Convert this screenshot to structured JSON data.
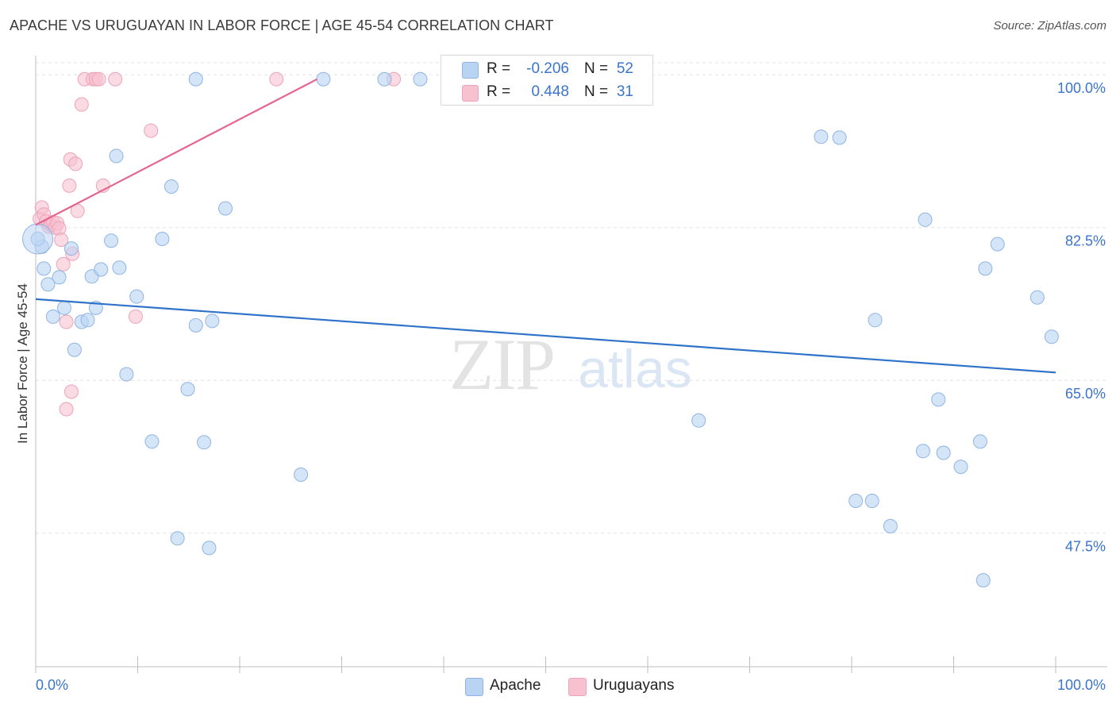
{
  "title": "APACHE VS URUGUAYAN IN LABOR FORCE | AGE 45-54 CORRELATION CHART",
  "source": "Source: ZipAtlas.com",
  "watermark": {
    "zip": "ZIP",
    "atlas": "atlas"
  },
  "colors": {
    "apache_fill": "#b9d3f3",
    "apache_stroke": "#8fb4e3",
    "apache_line": "#2f73c9",
    "uruguayan_fill": "#f7c1d0",
    "uruguayan_stroke": "#eda3b9",
    "uruguayan_line": "#e4658e",
    "tick_label": "#3b74c9",
    "grid": "#e2e2e2"
  },
  "legend": {
    "rows": [
      {
        "r_label": "R =",
        "r_value": "-0.206",
        "n_label": "N =",
        "n_value": "52"
      },
      {
        "r_label": "R =",
        "r_value": "0.448",
        "n_label": "N =",
        "n_value": "31"
      }
    ]
  },
  "bottom_legend": {
    "apache": "Apache",
    "uruguayans": "Uruguayans"
  },
  "chart_data": {
    "type": "scatter",
    "title": "APACHE VS URUGUAYAN IN LABOR FORCE | AGE 45-54 CORRELATION CHART",
    "xlabel": "",
    "ylabel": "In Labor Force | Age 45-54",
    "xlim": [
      0,
      100
    ],
    "ylim": [
      32.2,
      102.2
    ],
    "x_tick_labels": [
      {
        "value": 0,
        "label": "0.0%"
      },
      {
        "value": 100,
        "label": "100.0%"
      }
    ],
    "y_tick_labels": [
      {
        "value": 100,
        "label": "100.0%"
      },
      {
        "value": 82.5,
        "label": "82.5%"
      },
      {
        "value": 65,
        "label": "65.0%"
      },
      {
        "value": 47.5,
        "label": "47.5%"
      }
    ],
    "grid": true,
    "legend_position": "top-center",
    "series": [
      {
        "name": "Apache",
        "r": -0.206,
        "n": 52,
        "trend": {
          "x": [
            0,
            100
          ],
          "y": [
            74.3,
            65.9
          ]
        },
        "points": [
          [
            0.6,
            80.3
          ],
          [
            0.8,
            77.8
          ],
          [
            1.2,
            76.0
          ],
          [
            1.7,
            72.3
          ],
          [
            2.3,
            76.8
          ],
          [
            2.8,
            73.3
          ],
          [
            3.5,
            80.1
          ],
          [
            3.8,
            68.5
          ],
          [
            4.5,
            71.7
          ],
          [
            5.1,
            71.9
          ],
          [
            5.5,
            76.9
          ],
          [
            5.9,
            73.3
          ],
          [
            6.4,
            77.7
          ],
          [
            7.4,
            81.0
          ],
          [
            7.9,
            90.7
          ],
          [
            8.2,
            77.9
          ],
          [
            8.9,
            65.7
          ],
          [
            9.9,
            74.6
          ],
          [
            11.4,
            58.0
          ],
          [
            12.4,
            81.2
          ],
          [
            13.3,
            87.2
          ],
          [
            13.9,
            46.9
          ],
          [
            14.9,
            64.0
          ],
          [
            15.7,
            71.3
          ],
          [
            15.7,
            99.5
          ],
          [
            16.5,
            57.9
          ],
          [
            17.0,
            45.8
          ],
          [
            17.3,
            71.8
          ],
          [
            18.6,
            84.7
          ],
          [
            26.0,
            54.2
          ],
          [
            28.2,
            99.5
          ],
          [
            34.2,
            99.5
          ],
          [
            37.7,
            99.5
          ],
          [
            65.0,
            60.4
          ],
          [
            77.0,
            92.9
          ],
          [
            78.8,
            92.8
          ],
          [
            80.4,
            51.2
          ],
          [
            82.0,
            51.2
          ],
          [
            82.3,
            71.9
          ],
          [
            83.8,
            48.3
          ],
          [
            87.0,
            56.9
          ],
          [
            87.2,
            83.4
          ],
          [
            88.5,
            62.8
          ],
          [
            89.0,
            56.7
          ],
          [
            90.7,
            55.1
          ],
          [
            92.6,
            58.0
          ],
          [
            92.9,
            42.1
          ],
          [
            93.1,
            77.8
          ],
          [
            94.3,
            80.6
          ],
          [
            98.2,
            74.5
          ],
          [
            99.6,
            70.0
          ],
          [
            0.2,
            81.2
          ]
        ]
      },
      {
        "name": "Uruguayans",
        "r": 0.448,
        "n": 31,
        "trend": {
          "x": [
            0,
            27.6
          ],
          "y": [
            82.8,
            99.5
          ]
        },
        "points": [
          [
            0.4,
            83.5
          ],
          [
            0.6,
            84.8
          ],
          [
            0.8,
            84.0
          ],
          [
            1.0,
            83.2
          ],
          [
            1.3,
            82.6
          ],
          [
            1.5,
            82.8
          ],
          [
            1.7,
            83.1
          ],
          [
            1.9,
            82.5
          ],
          [
            2.1,
            83.0
          ],
          [
            2.3,
            82.4
          ],
          [
            2.5,
            81.1
          ],
          [
            2.7,
            78.3
          ],
          [
            3.0,
            71.7
          ],
          [
            3.0,
            61.7
          ],
          [
            3.3,
            87.3
          ],
          [
            3.4,
            90.3
          ],
          [
            3.6,
            79.5
          ],
          [
            3.5,
            63.7
          ],
          [
            3.9,
            89.8
          ],
          [
            4.1,
            84.4
          ],
          [
            4.5,
            96.6
          ],
          [
            4.8,
            99.5
          ],
          [
            5.6,
            99.5
          ],
          [
            5.9,
            99.5
          ],
          [
            6.2,
            99.5
          ],
          [
            6.6,
            87.3
          ],
          [
            7.8,
            99.5
          ],
          [
            9.8,
            72.3
          ],
          [
            11.3,
            93.6
          ],
          [
            23.6,
            99.5
          ],
          [
            35.1,
            99.5
          ]
        ]
      }
    ]
  }
}
